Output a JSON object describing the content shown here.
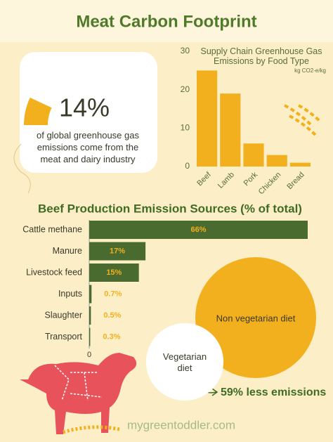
{
  "title": "Meat Carbon Footprint",
  "footer": "mygreentoddler.com",
  "chart_data": [
    {
      "type": "gauge",
      "values": [
        14
      ],
      "value_labels": [
        "14%"
      ],
      "ylim": [
        0,
        100
      ],
      "caption": "of global greenhouse gas emissions come from the meat and dairy industry",
      "color": "#f2b01e"
    },
    {
      "type": "bar",
      "title": "Supply Chain Greenhouse Gas Emissions by Food Type",
      "subtitle": "kg CO2-e/kg",
      "categories": [
        "Beef",
        "Lamb",
        "Pork",
        "Chicken",
        "Bread"
      ],
      "values": [
        25,
        19,
        6,
        3,
        1
      ],
      "ylim": [
        0,
        30
      ],
      "yticks": [
        0,
        10,
        20,
        30
      ],
      "color": "#f2b01e"
    },
    {
      "type": "hbar",
      "title": "Beef Production Emission Sources (% of total)",
      "categories": [
        "Cattle methane",
        "Manure",
        "Livestock feed",
        "Inputs",
        "Slaughter",
        "Transport"
      ],
      "values": [
        66,
        17,
        15,
        0.7,
        0.5,
        0.3
      ],
      "value_labels": [
        "66%",
        "17%",
        "15%",
        "0.7%",
        "0.5%",
        "0.3%"
      ],
      "xlim": [
        0,
        66
      ],
      "xticks": [
        0
      ],
      "color": "#4a6b2f",
      "label_color": "#f2b01e"
    },
    {
      "type": "bubble",
      "categories": [
        "Non vegetarian diet",
        "Vegetarian diet"
      ],
      "values": [
        100,
        41
      ],
      "colors": [
        "#f2b01e",
        "#ffffff"
      ],
      "annotation": "59% less emissions"
    }
  ]
}
